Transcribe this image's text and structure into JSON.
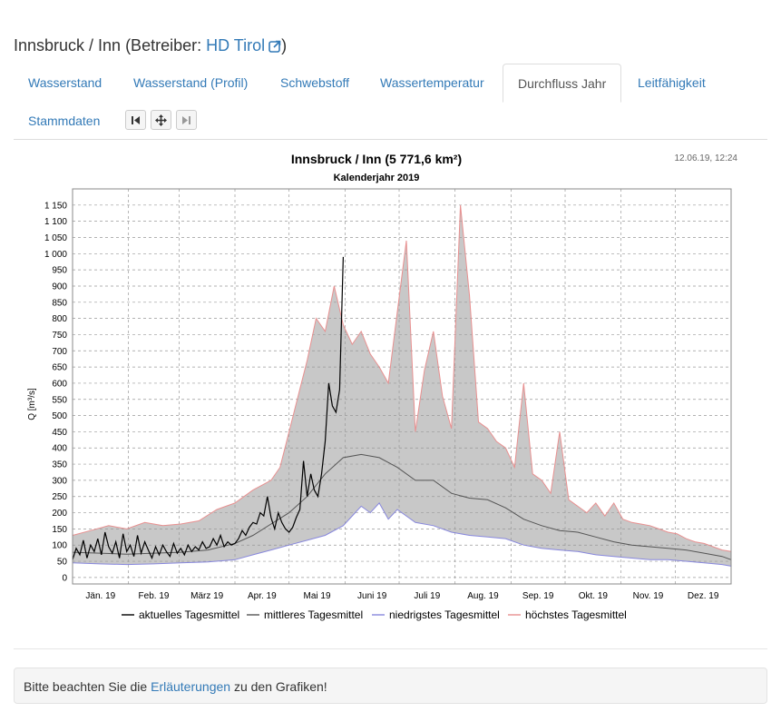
{
  "header": {
    "title_prefix": "Innsbruck / Inn (Betreiber: ",
    "operator_link": "HD Tirol",
    "title_suffix": ")"
  },
  "tabs": [
    {
      "label": "Wasserstand",
      "active": false
    },
    {
      "label": "Wasserstand (Profil)",
      "active": false
    },
    {
      "label": "Schwebstoff",
      "active": false
    },
    {
      "label": "Wassertemperatur",
      "active": false
    },
    {
      "label": "Durchfluss Jahr",
      "active": true
    },
    {
      "label": "Leitfähigkeit",
      "active": false
    },
    {
      "label": "Stammdaten",
      "active": false
    }
  ],
  "nav_buttons": [
    {
      "icon": "step-backward-icon"
    },
    {
      "icon": "move-icon"
    },
    {
      "icon": "step-forward-icon"
    }
  ],
  "chart_data": {
    "type": "area",
    "title": "Innsbruck / Inn (5 771,6 km²)",
    "subtitle": "Kalenderjahr 2019",
    "timestamp": "12.06.19, 12:24",
    "ylabel": "Q [m³/s]",
    "xlabel": "",
    "ylim": [
      -20,
      1200
    ],
    "xlim": [
      0,
      365
    ],
    "y_ticks": [
      0,
      50,
      100,
      150,
      200,
      250,
      300,
      350,
      400,
      450,
      500,
      550,
      600,
      650,
      700,
      750,
      800,
      850,
      900,
      950,
      1000,
      1050,
      1100,
      1150
    ],
    "y_tick_labels": [
      "0",
      "50",
      "100",
      "150",
      "200",
      "250",
      "300",
      "350",
      "400",
      "450",
      "500",
      "550",
      "600",
      "650",
      "700",
      "750",
      "800",
      "850",
      "900",
      "950",
      "1 000",
      "1 050",
      "1 100",
      "1 150"
    ],
    "month_labels": [
      "Jän. 19",
      "Feb. 19",
      "März 19",
      "Apr. 19",
      "Mai 19",
      "Juni 19",
      "Juli 19",
      "Aug. 19",
      "Sep. 19",
      "Okt. 19",
      "Nov. 19",
      "Dez. 19"
    ],
    "month_starts": [
      0,
      31,
      59,
      90,
      120,
      151,
      181,
      212,
      243,
      273,
      304,
      334,
      365
    ],
    "grid": true,
    "legend_position": "bottom",
    "colors": {
      "aktuell": "#000000",
      "mittel": "#555555",
      "niedrig": "#8888dd",
      "hoechst": "#e89090",
      "band": "#c8c8c8"
    },
    "series": [
      {
        "name": "aktuelles Tagesmittel",
        "key": "aktuell",
        "x": [
          0,
          2,
          4,
          6,
          8,
          10,
          12,
          14,
          16,
          18,
          20,
          22,
          24,
          26,
          28,
          30,
          32,
          34,
          36,
          38,
          40,
          42,
          44,
          46,
          48,
          50,
          52,
          54,
          56,
          58,
          60,
          62,
          64,
          66,
          68,
          70,
          72,
          74,
          76,
          78,
          80,
          82,
          84,
          86,
          88,
          90,
          92,
          94,
          96,
          98,
          100,
          102,
          104,
          106,
          108,
          110,
          112,
          114,
          116,
          118,
          120,
          122,
          124,
          126,
          128,
          130,
          132,
          134,
          136,
          138,
          140,
          142,
          144,
          146,
          148,
          150,
          151,
          153,
          155,
          157,
          158,
          159,
          160
        ],
        "values": [
          55,
          90,
          70,
          115,
          60,
          100,
          80,
          120,
          70,
          140,
          95,
          75,
          110,
          60,
          135,
          80,
          100,
          65,
          130,
          75,
          110,
          85,
          60,
          95,
          70,
          100,
          80,
          65,
          105,
          75,
          90,
          70,
          100,
          80,
          95,
          85,
          110,
          90,
          95,
          120,
          100,
          130,
          95,
          110,
          100,
          105,
          120,
          145,
          130,
          155,
          170,
          165,
          200,
          190,
          250,
          185,
          150,
          200,
          170,
          150,
          140,
          155,
          185,
          210,
          360,
          250,
          320,
          270,
          250,
          320,
          420,
          600,
          530,
          510,
          580,
          990,
          null,
          null,
          null,
          null,
          null,
          null,
          null
        ]
      },
      {
        "name": "mittleres Tagesmittel",
        "key": "mittel",
        "x": [
          0,
          15,
          30,
          45,
          60,
          75,
          90,
          100,
          110,
          120,
          130,
          140,
          150,
          160,
          170,
          180,
          190,
          200,
          210,
          220,
          230,
          240,
          250,
          260,
          270,
          280,
          290,
          300,
          310,
          320,
          330,
          340,
          350,
          360,
          365
        ],
        "values": [
          78,
          75,
          72,
          75,
          78,
          85,
          105,
          130,
          165,
          200,
          250,
          320,
          370,
          380,
          370,
          340,
          300,
          300,
          260,
          245,
          240,
          215,
          180,
          160,
          145,
          140,
          125,
          110,
          100,
          95,
          90,
          85,
          75,
          65,
          55
        ]
      },
      {
        "name": "niedrigstes Tagesmittel",
        "key": "niedrig",
        "x": [
          0,
          15,
          30,
          45,
          60,
          75,
          90,
          100,
          110,
          120,
          130,
          140,
          150,
          155,
          160,
          165,
          170,
          175,
          180,
          190,
          200,
          210,
          220,
          230,
          240,
          250,
          260,
          270,
          280,
          290,
          300,
          310,
          320,
          330,
          340,
          350,
          360,
          365
        ],
        "values": [
          45,
          42,
          40,
          42,
          45,
          48,
          55,
          70,
          85,
          100,
          115,
          130,
          160,
          190,
          220,
          200,
          230,
          180,
          210,
          170,
          160,
          140,
          130,
          125,
          120,
          100,
          90,
          85,
          80,
          70,
          65,
          60,
          55,
          55,
          50,
          45,
          40,
          35
        ]
      },
      {
        "name": "höchstes Tagesmittel",
        "key": "hoechst",
        "x": [
          0,
          10,
          20,
          30,
          40,
          50,
          60,
          70,
          80,
          90,
          100,
          110,
          115,
          120,
          125,
          130,
          135,
          140,
          145,
          150,
          155,
          160,
          165,
          170,
          175,
          180,
          185,
          190,
          195,
          200,
          205,
          210,
          215,
          220,
          225,
          230,
          235,
          240,
          245,
          250,
          255,
          260,
          265,
          270,
          275,
          280,
          285,
          290,
          295,
          300,
          305,
          310,
          315,
          320,
          325,
          330,
          335,
          340,
          345,
          350,
          355,
          360,
          365
        ],
        "values": [
          130,
          145,
          160,
          150,
          170,
          160,
          165,
          175,
          210,
          230,
          270,
          300,
          340,
          450,
          560,
          670,
          800,
          760,
          900,
          780,
          720,
          760,
          690,
          650,
          600,
          820,
          1040,
          450,
          640,
          760,
          560,
          460,
          1150,
          870,
          480,
          460,
          420,
          400,
          340,
          600,
          320,
          300,
          260,
          450,
          240,
          220,
          200,
          230,
          190,
          230,
          180,
          170,
          165,
          160,
          150,
          140,
          135,
          120,
          110,
          105,
          95,
          85,
          80
        ]
      }
    ]
  },
  "notice": {
    "prefix": "Bitte beachten Sie die ",
    "link": "Erläuterungen",
    "suffix": " zu den Grafiken!"
  }
}
